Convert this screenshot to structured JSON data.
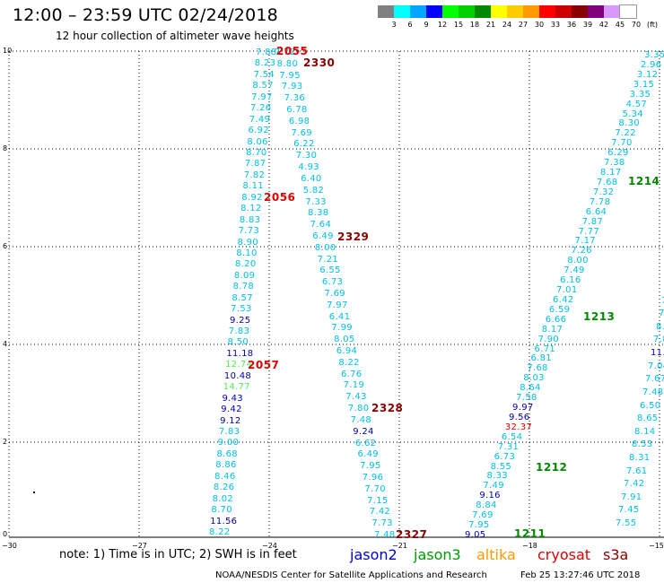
{
  "title": "12:00 – 23:59 UTC 02/24/2018",
  "subtitle": "12 hour collection of altimeter wave heights",
  "scale": {
    "labels": [
      "3",
      "6",
      "9",
      "12",
      "15",
      "18",
      "21",
      "24",
      "27",
      "30",
      "33",
      "36",
      "39",
      "42",
      "45",
      "70",
      "(ft)"
    ],
    "colors": [
      "#808080",
      "#00ffff",
      "#00a6ff",
      "#0000ff",
      "#00ff00",
      "#00d000",
      "#008800",
      "#ffff00",
      "#ffcc00",
      "#ff9900",
      "#ff0000",
      "#cc0000",
      "#880000",
      "#800080",
      "#d898ff",
      "#ffffff"
    ]
  },
  "axes": {
    "yticks": [
      "0",
      "2",
      "4",
      "6",
      "8",
      "10"
    ],
    "xticks": [
      "−30",
      "−27",
      "−24",
      "−21",
      "−18",
      "−15"
    ]
  },
  "colors": {
    "c1": "#00bfe6",
    "c2": "#0090ff",
    "c3": "#0000aa",
    "c4": "#55ee55",
    "c5": "#dd0000"
  },
  "tracks": [
    {
      "values": [
        "7.88",
        "8.23",
        "7.54",
        "8.57",
        "7.97",
        "7.26",
        "7.49",
        "6.92",
        "8.06",
        "8.70",
        "7.87",
        "7.82",
        "8.11",
        "8.92",
        "8.12",
        "8.83",
        "7.73",
        "8.90",
        "8.10",
        "8.20",
        "8.09",
        "8.78",
        "8.57",
        "7.53",
        "9.25",
        "7.83",
        "8.50",
        "11.18",
        "12.74",
        "10.48",
        "14.77",
        "9.43",
        "9.42",
        "9.12",
        "7.83",
        "9.00",
        "8.68",
        "8.86",
        "8.46",
        "8.26",
        "8.02",
        "8.70",
        "11.56",
        "8.22"
      ],
      "colors": [
        "c1",
        "c1",
        "c1",
        "c1",
        "c1",
        "c1",
        "c1",
        "c1",
        "c1",
        "c1",
        "c1",
        "c1",
        "c1",
        "c1",
        "c1",
        "c1",
        "c1",
        "c1",
        "c1",
        "c1",
        "c1",
        "c1",
        "c1",
        "c1",
        "c3",
        "c1",
        "c1",
        "c3",
        "c4",
        "c3",
        "c4",
        "c3",
        "c3",
        "c3",
        "c1",
        "c1",
        "c1",
        "c1",
        "c1",
        "c1",
        "c1",
        "c1",
        "c3",
        "c1"
      ]
    },
    {
      "values": [
        "7.72",
        "8.80",
        "7.95",
        "7.93",
        "7.36",
        "6.78",
        "6.98",
        "7.69",
        "6.22",
        "7.30",
        "4.93",
        "6.40",
        "5.82",
        "7.33",
        "8.38",
        "7.64",
        "6.49",
        "8.00",
        "7.21",
        "6.55",
        "6.73",
        "7.69",
        "7.97",
        "6.41",
        "7.99",
        "8.05",
        "6.94",
        "8.22",
        "6.76",
        "7.19",
        "7.43",
        "7.80",
        "7.48",
        "9.24",
        "6.62",
        "6.49",
        "7.95",
        "7.96",
        "7.70",
        "7.15",
        "7.42",
        "7.73",
        "7.48"
      ],
      "colors": [
        "c1",
        "c1",
        "c1",
        "c1",
        "c1",
        "c1",
        "c1",
        "c1",
        "c1",
        "c1",
        "c1",
        "c1",
        "c1",
        "c1",
        "c1",
        "c1",
        "c1",
        "c1",
        "c1",
        "c1",
        "c1",
        "c1",
        "c1",
        "c1",
        "c1",
        "c1",
        "c1",
        "c1",
        "c1",
        "c1",
        "c1",
        "c1",
        "c1",
        "c3",
        "c1",
        "c1",
        "c1",
        "c1",
        "c1",
        "c1",
        "c1",
        "c1",
        "c1"
      ]
    },
    {
      "values": [
        "9.05",
        "7.95",
        "7.69",
        "8.84",
        "9.16",
        "7.49",
        "8.33",
        "8.55",
        "6.73",
        "7.31",
        "6.54",
        "32.37",
        "9.56",
        "9.97",
        "7.58",
        "8.64",
        "8.03",
        "7.68",
        "6.81",
        "6.71",
        "7.90",
        "8.17",
        "6.66",
        "6.59",
        "6.42",
        "7.01",
        "6.16",
        "7.49",
        "8.00",
        "7.26",
        "7.17",
        "7.77",
        "7.87",
        "6.64",
        "7.78",
        "7.32",
        "7.68",
        "8.17",
        "7.38",
        "6.29",
        "7.70",
        "7.22",
        "8.30",
        "5.34",
        "4.57",
        "3.35",
        "3.15",
        "3.12",
        "2.96",
        "3.35"
      ],
      "colors": [
        "c3",
        "c1",
        "c1",
        "c1",
        "c3",
        "c1",
        "c1",
        "c1",
        "c1",
        "c1",
        "c1",
        "c5",
        "c3",
        "c3",
        "c1",
        "c1",
        "c1",
        "c1",
        "c1",
        "c1",
        "c1",
        "c1",
        "c1",
        "c1",
        "c1",
        "c1",
        "c1",
        "c1",
        "c1",
        "c1",
        "c1",
        "c1",
        "c1",
        "c1",
        "c1",
        "c1",
        "c1",
        "c1",
        "c1",
        "c1",
        "c1",
        "c1",
        "c1",
        "c1",
        "c1",
        "c1",
        "c1",
        "c1",
        "c1",
        "c1"
      ]
    },
    {
      "values": [
        "7.55",
        "7.45",
        "7.91",
        "7.42",
        "7.61",
        "8.31",
        "8.53",
        "8.14",
        "8.65",
        "6.50",
        "7.48",
        "7.67",
        "7.04",
        "11.34",
        "7.84",
        "8.01",
        "7.7",
        "7.",
        "6"
      ],
      "colors": [
        "c1",
        "c1",
        "c1",
        "c1",
        "c1",
        "c1",
        "c1",
        "c1",
        "c1",
        "c1",
        "c1",
        "c1",
        "c1",
        "c3",
        "c1",
        "c1",
        "c1",
        "c1",
        "c1"
      ]
    }
  ],
  "track_labels": [
    {
      "text": "2055",
      "color": "#dd0000"
    },
    {
      "text": "2330",
      "color": "#880000"
    },
    {
      "text": "2056",
      "color": "#dd0000"
    },
    {
      "text": "2329",
      "color": "#880000"
    },
    {
      "text": "2057",
      "color": "#dd0000"
    },
    {
      "text": "2328",
      "color": "#880000"
    },
    {
      "text": "2327",
      "color": "#880000"
    },
    {
      "text": "1214",
      "color": "#008800"
    },
    {
      "text": "1213",
      "color": "#008800"
    },
    {
      "text": "1212",
      "color": "#008800"
    },
    {
      "text": "1211",
      "color": "#008800"
    }
  ],
  "note": "note:  1) Time is in UTC;  2) SWH is in feet",
  "legend": [
    {
      "name": "jason2",
      "color": "#0000dd"
    },
    {
      "name": "jason3",
      "color": "#009900"
    },
    {
      "name": "altika",
      "color": "#ff9900"
    },
    {
      "name": "cryosat",
      "color": "#dd0000"
    },
    {
      "name": "s3a",
      "color": "#880000"
    }
  ],
  "footer_left": "NOAA/NESDIS Center for Satellite Applications and Research",
  "footer_right": "Feb 25 13:27:46 UTC 2018"
}
